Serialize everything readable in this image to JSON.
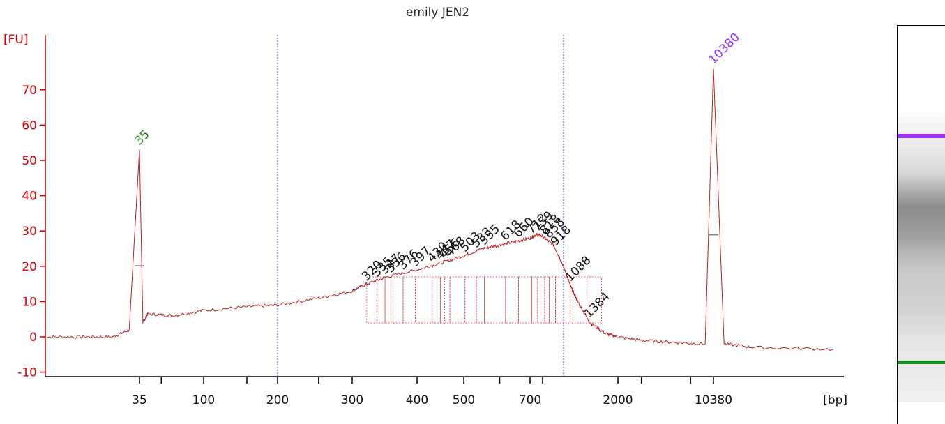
{
  "chart_data": {
    "type": "line",
    "title": "emily JEN2",
    "ylabel": "[FU]",
    "xlabel": "[bp]",
    "ylim": [
      -10,
      80
    ],
    "y_ticks": [
      70,
      60,
      50,
      40,
      30,
      20,
      10,
      0,
      -10
    ],
    "x_ticks": [
      "35",
      "100",
      "200",
      "300",
      "400",
      "500",
      "700",
      "2000",
      "10380"
    ],
    "marker_peaks": [
      {
        "label": "35",
        "value_fu": 53,
        "color": "#228b22"
      },
      {
        "label": "10380",
        "value_fu": 76,
        "color": "#9b30ff"
      }
    ],
    "sample_peaks": [
      "320",
      "335",
      "347",
      "356",
      "376",
      "397",
      "430",
      "447",
      "456",
      "468",
      "503",
      "533",
      "555",
      "618",
      "660",
      "712",
      "759",
      "818",
      "858",
      "918",
      "1088",
      "1384"
    ],
    "series": [
      {
        "name": "emily JEN2",
        "color": "#b22222",
        "x": [
          "20",
          "25",
          "30",
          "33",
          "35",
          "37",
          "40",
          "60",
          "100",
          "150",
          "200",
          "250",
          "300",
          "320",
          "350",
          "400",
          "450",
          "500",
          "550",
          "600",
          "650",
          "700",
          "750",
          "800",
          "900",
          "1000",
          "1100",
          "1200",
          "1400",
          "1700",
          "2000",
          "3000",
          "5000",
          "9000",
          "10380",
          "11000",
          "13000",
          "20000"
        ],
        "values": [
          0,
          0,
          0,
          2,
          53,
          4,
          6.5,
          6,
          7.5,
          8.5,
          9,
          11,
          13,
          15,
          17,
          19,
          21,
          23,
          25,
          26,
          27,
          28,
          29,
          28.5,
          26,
          20,
          14,
          10,
          4,
          1,
          0,
          -1,
          -1.5,
          -2,
          76,
          -2,
          -3,
          -3.5
        ]
      }
    ]
  },
  "gel": {
    "upper_marker_color": "#9b30ff",
    "lower_marker_color": "#228b22"
  }
}
